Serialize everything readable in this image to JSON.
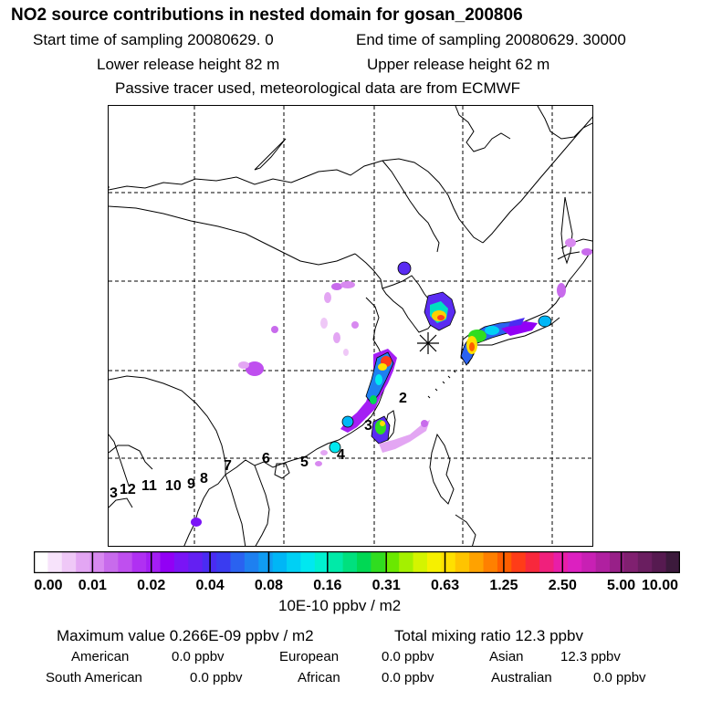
{
  "header": {
    "title": "NO2 source contributions in nested domain for gosan_200806",
    "start_time_label": "Start time of sampling 20080629.     0",
    "end_time_label": "End time of sampling 20080629. 30000",
    "lower_release_label": "Lower release height   82 m",
    "upper_release_label": "Upper release height   62 m",
    "info_line": "Passive tracer used, meteorological data are from ECMWF"
  },
  "map": {
    "receptor_marker": "receptor-star-icon",
    "source_labels": [
      "2",
      "3",
      "4",
      "5",
      "6",
      "7",
      "8",
      "9",
      "10",
      "11",
      "12",
      "3"
    ]
  },
  "colorbar": {
    "tick_labels": [
      "0.00",
      "0.01",
      "0.02",
      "0.04",
      "0.08",
      "0.16",
      "0.31",
      "0.63",
      "1.25",
      "2.50",
      "5.00",
      "10.00"
    ],
    "colors": [
      "#ffffff",
      "#f7e3fb",
      "#efc8f7",
      "#e3a6f3",
      "#d889f0",
      "#c86bec",
      "#bf4fef",
      "#b030f2",
      "#a41ef4",
      "#9200f5",
      "#7a14f6",
      "#6420f2",
      "#4a2cf2",
      "#3a3cf0",
      "#2a62f0",
      "#1e80f0",
      "#109cf2",
      "#00b6f6",
      "#00d0f4",
      "#00e8f0",
      "#00f0d0",
      "#00eaa8",
      "#00e07e",
      "#00d854",
      "#30dd20",
      "#6ae800",
      "#a4f000",
      "#d4f400",
      "#f6f000",
      "#ffe000",
      "#ffc400",
      "#ffa200",
      "#ff8000",
      "#ff5e00",
      "#ff3c18",
      "#f8283c",
      "#f0207c",
      "#e81ea8",
      "#dc20c0",
      "#c820b4",
      "#b020a0",
      "#982088",
      "#802070",
      "#6a1e60",
      "#561a50",
      "#3c1a3c"
    ],
    "unit_label": "10E-10 ppbv / m2"
  },
  "summary": {
    "max_label": "Maximum value  0.266E-09 ppbv / m2",
    "total_label": "Total mixing ratio       12.3 ppbv",
    "regions": [
      {
        "name": "American",
        "value": "0.0 ppbv"
      },
      {
        "name": "European",
        "value": "0.0 ppbv"
      },
      {
        "name": "Asian",
        "value": "12.3 ppbv"
      },
      {
        "name": "South American",
        "value": "0.0 ppbv"
      },
      {
        "name": "African",
        "value": "0.0 ppbv"
      },
      {
        "name": "Australian",
        "value": "0.0 ppbv"
      }
    ]
  }
}
